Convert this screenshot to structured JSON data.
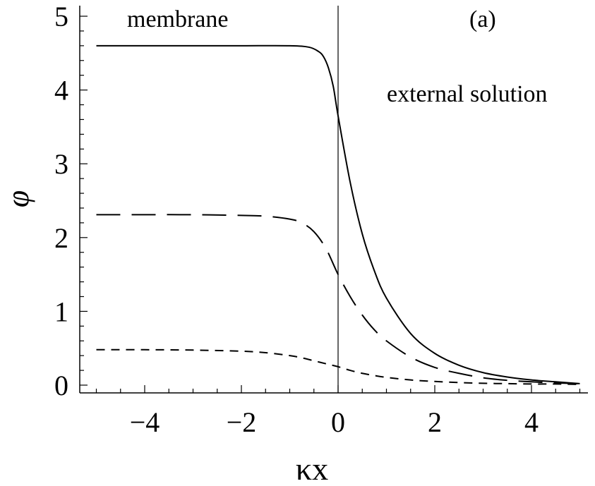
{
  "chart_data": {
    "type": "line",
    "title": "",
    "xlabel": "κx",
    "ylabel": "φ",
    "xlim": [
      -5,
      5
    ],
    "ylim": [
      0,
      5
    ],
    "xticks": [
      -4,
      -2,
      0,
      2,
      4
    ],
    "yticks": [
      0,
      1,
      2,
      3,
      4,
      5
    ],
    "xtick_labels": [
      "−4",
      "−2",
      "0",
      "2",
      "4"
    ],
    "ytick_labels": [
      "0",
      "1",
      "2",
      "3",
      "4",
      "5"
    ],
    "grid": false,
    "legend": "none",
    "vertical_line_x": 0,
    "annotations": {
      "membrane": "membrane",
      "external_solution": "external solution",
      "panel": "(a)"
    },
    "series": [
      {
        "style": "solid",
        "color": "#000000",
        "x": [
          -5,
          -4,
          -3,
          -2,
          -1,
          -0.6,
          -0.4,
          -0.3,
          -0.2,
          -0.1,
          0,
          0.25,
          0.5,
          0.75,
          1,
          1.5,
          2,
          2.5,
          3,
          3.5,
          4,
          4.5,
          5
        ],
        "y": [
          4.6,
          4.6,
          4.6,
          4.6,
          4.6,
          4.58,
          4.52,
          4.45,
          4.3,
          4.05,
          3.65,
          2.75,
          2.05,
          1.55,
          1.18,
          0.7,
          0.43,
          0.27,
          0.17,
          0.11,
          0.07,
          0.045,
          0.02
        ]
      },
      {
        "style": "long-dash",
        "color": "#000000",
        "x": [
          -5,
          -4,
          -3,
          -2,
          -1.5,
          -1,
          -0.75,
          -0.5,
          -0.25,
          0,
          0.25,
          0.5,
          0.75,
          1,
          1.5,
          2,
          2.5,
          3,
          3.5,
          4,
          4.5,
          5
        ],
        "y": [
          2.31,
          2.31,
          2.31,
          2.3,
          2.29,
          2.25,
          2.2,
          2.08,
          1.85,
          1.5,
          1.2,
          0.95,
          0.75,
          0.6,
          0.38,
          0.24,
          0.16,
          0.1,
          0.065,
          0.045,
          0.03,
          0.02
        ]
      },
      {
        "style": "short-dash",
        "color": "#000000",
        "x": [
          -5,
          -4,
          -3,
          -2,
          -1.5,
          -1,
          -0.75,
          -0.5,
          -0.25,
          0,
          0.25,
          0.5,
          0.75,
          1,
          1.5,
          2,
          2.5,
          3,
          3.5,
          4,
          4.5,
          5
        ],
        "y": [
          0.48,
          0.48,
          0.475,
          0.46,
          0.44,
          0.4,
          0.37,
          0.33,
          0.29,
          0.25,
          0.2,
          0.16,
          0.13,
          0.105,
          0.07,
          0.05,
          0.035,
          0.025,
          0.02,
          0.015,
          0.015,
          0.01
        ]
      }
    ]
  }
}
